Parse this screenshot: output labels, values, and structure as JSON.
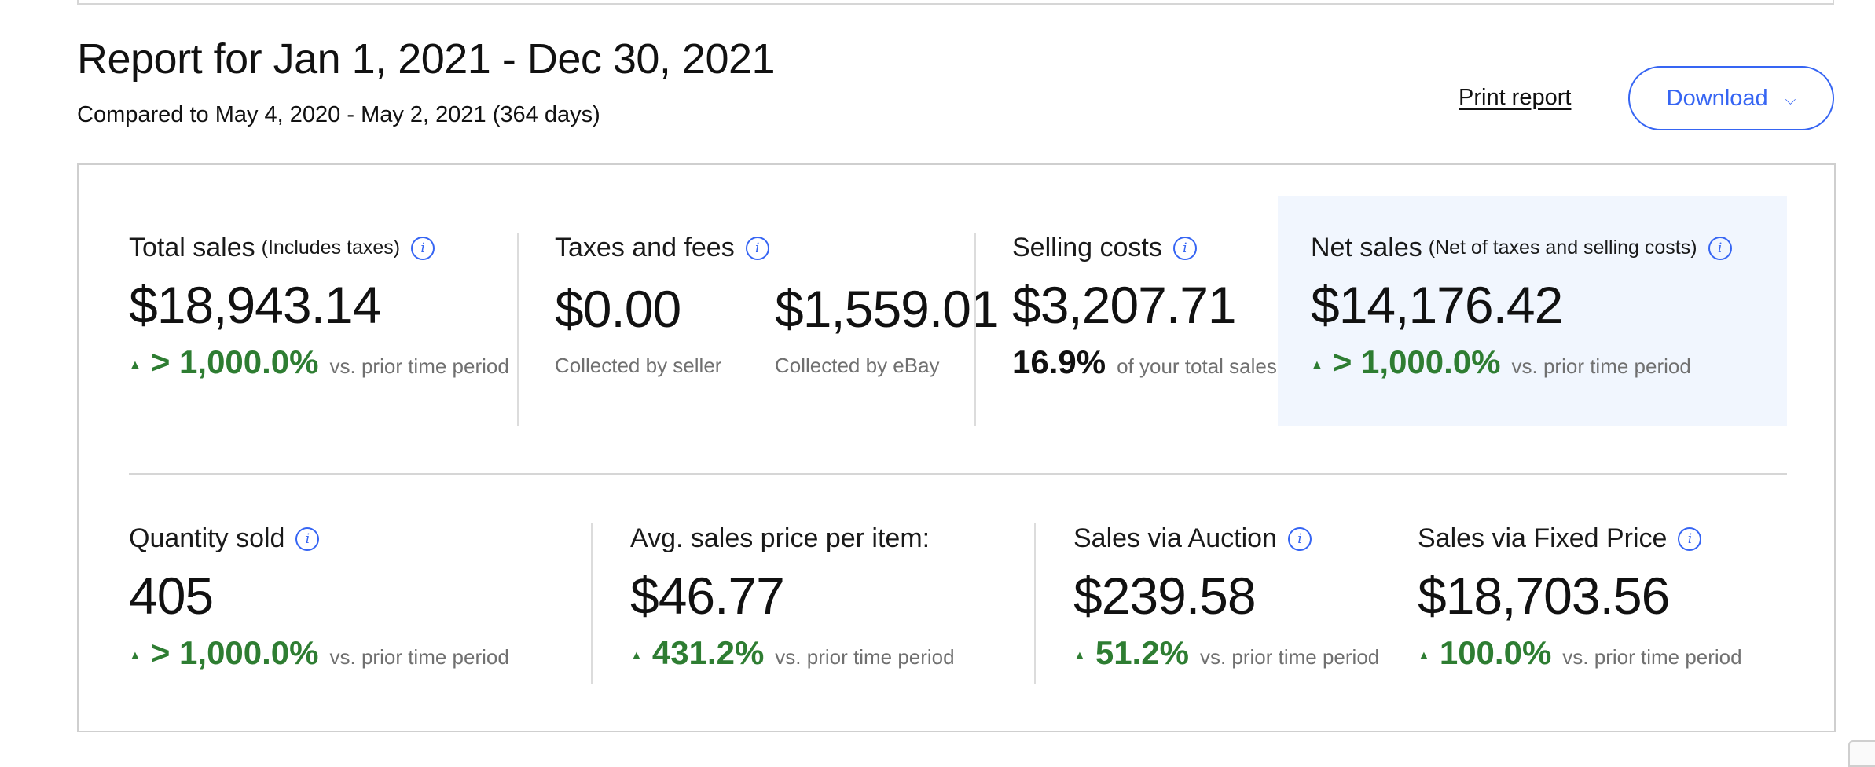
{
  "header": {
    "title": "Report for Jan 1, 2021 - Dec 30, 2021",
    "subtitle": "Compared to May 4, 2020 - May 2, 2021 (364 days)",
    "print_label": "Print report",
    "download_label": "Download",
    "download_icon": "chevron-down-icon"
  },
  "colors": {
    "accent": "#3665f3",
    "positive": "#2e7d32",
    "highlight_bg": "#f1f6fe",
    "muted_text": "#707070"
  },
  "metrics_row1": {
    "total_sales": {
      "label": "Total sales",
      "qualifier": "(Includes taxes)",
      "value": "$18,943.14",
      "change": "> 1,000.0%",
      "comparison": "vs. prior time period"
    },
    "taxes_fees": {
      "label": "Taxes and fees",
      "seller_value": "$0.00",
      "seller_caption": "Collected by seller",
      "ebay_value": "$1,559.01",
      "ebay_caption": "Collected by eBay"
    },
    "selling_costs": {
      "label": "Selling costs",
      "value": "$3,207.71",
      "ratio": "16.9%",
      "ratio_caption": "of your total sales"
    },
    "net_sales": {
      "label": "Net sales",
      "qualifier": "(Net of taxes and selling costs)",
      "value": "$14,176.42",
      "change": "> 1,000.0%",
      "comparison": "vs. prior time period"
    }
  },
  "metrics_row2": {
    "quantity_sold": {
      "label": "Quantity sold",
      "value": "405",
      "change": "> 1,000.0%",
      "comparison": "vs. prior time period"
    },
    "avg_price": {
      "label": "Avg. sales price per item:",
      "value": "$46.77",
      "change": "431.2%",
      "comparison": "vs. prior time period"
    },
    "auction_sales": {
      "label": "Sales via Auction",
      "value": "$239.58",
      "change": "51.2%",
      "comparison": "vs. prior time period"
    },
    "fixed_price_sales": {
      "label": "Sales via Fixed Price",
      "value": "$18,703.56",
      "change": "100.0%",
      "comparison": "vs. prior time period"
    }
  }
}
